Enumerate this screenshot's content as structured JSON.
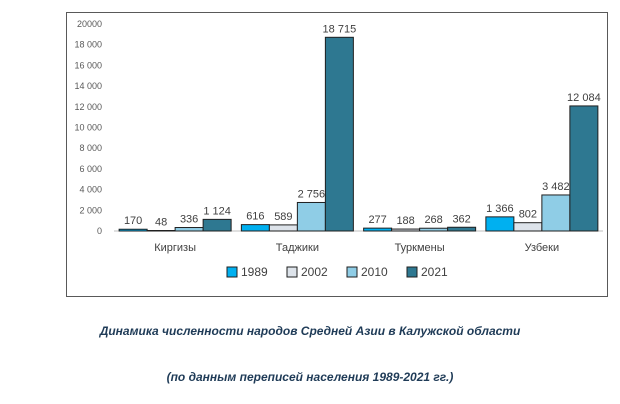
{
  "chart_data": {
    "type": "bar",
    "categories": [
      "Киргизы",
      "Таджики",
      "Туркмены",
      "Узбеки"
    ],
    "series": [
      {
        "name": "1989",
        "values": [
          170,
          616,
          277,
          1366
        ],
        "labels": [
          "170",
          "616",
          "277",
          "1 366"
        ],
        "color": "#00b0f0"
      },
      {
        "name": "2002",
        "values": [
          48,
          589,
          188,
          802
        ],
        "labels": [
          "48",
          "589",
          "188",
          "802"
        ],
        "color": "#dde3ea"
      },
      {
        "name": "2010",
        "values": [
          336,
          2756,
          268,
          3482
        ],
        "labels": [
          "336",
          "2 756",
          "268",
          "3 482"
        ],
        "color": "#8fcde6"
      },
      {
        "name": "2021",
        "values": [
          1124,
          18715,
          362,
          12084
        ],
        "labels": [
          "1 124",
          "18 715",
          "362",
          "12 084"
        ],
        "color": "#2e7891"
      }
    ],
    "ylim": [
      0,
      20000
    ],
    "yticks": [
      0,
      2000,
      4000,
      6000,
      8000,
      10000,
      12000,
      14000,
      16000,
      18000,
      20000
    ],
    "ytick_labels": [
      "0",
      "2 000",
      "4 000",
      "6 000",
      "8 000",
      "10 000",
      "12 000",
      "14 000",
      "16 000",
      "18 000",
      "20000"
    ],
    "grid": false,
    "legend_position": "bottom"
  },
  "caption": {
    "title": "Динамика численности народов Средней Азии в Калужской области",
    "subtitle": "(по данным переписей населения 1989-2021 гг.)"
  }
}
